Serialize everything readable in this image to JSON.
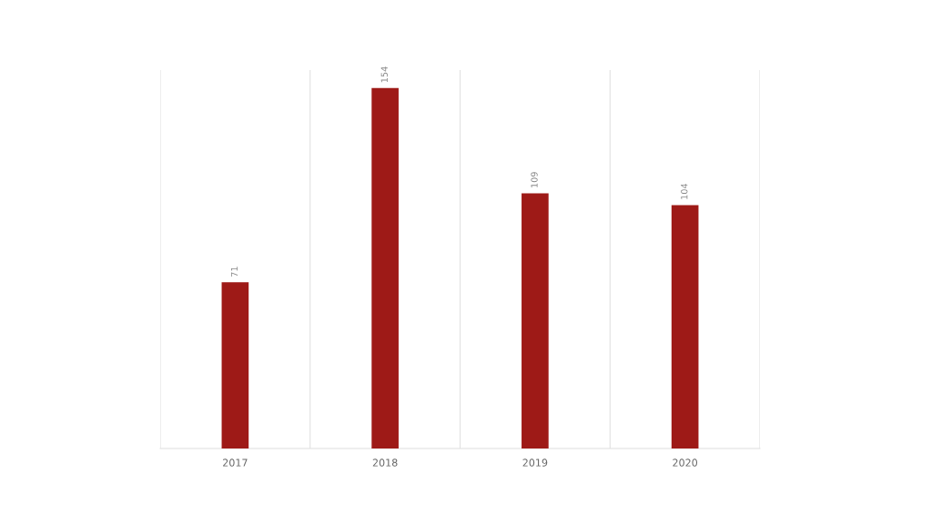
{
  "chart_data": {
    "type": "bar",
    "categories": [
      "2017",
      "2018",
      "2019",
      "2020"
    ],
    "values": [
      71,
      154,
      109,
      104
    ],
    "color": "#9e1a17",
    "data_labels": true,
    "grid": "x",
    "legend": false
  }
}
